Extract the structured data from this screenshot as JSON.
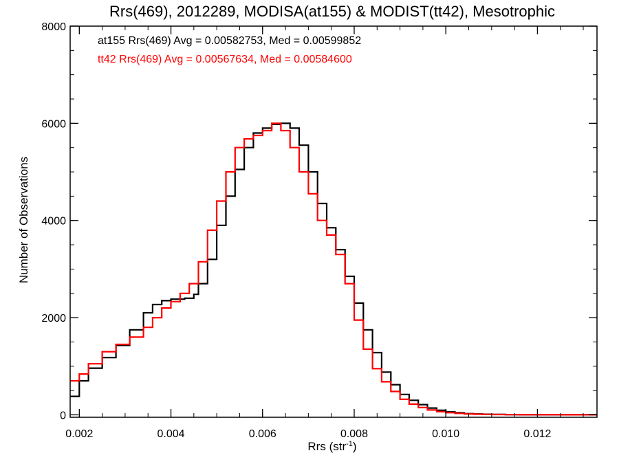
{
  "chart_data": {
    "type": "line",
    "style": "step histogram",
    "title": "Rrs(469), 2012289, MODISA(at155) & MODIST(tt42), Mesotrophic",
    "xlabel": "Rrs (str",
    "xlabel_sup": "-1",
    "xlabel_end": ")",
    "ylabel": "Number of Observations",
    "xlim": [
      0.0018,
      0.0133
    ],
    "ylim": [
      -50,
      8000
    ],
    "x_ticks": [
      0.002,
      0.004,
      0.006,
      0.008,
      0.01,
      0.012
    ],
    "x_tick_labels": [
      "0.002",
      "0.004",
      "0.006",
      "0.008",
      "0.010",
      "0.012"
    ],
    "y_ticks": [
      0,
      2000,
      4000,
      6000,
      8000
    ],
    "y_tick_labels": [
      "0",
      "2000",
      "4000",
      "6000",
      "8000"
    ],
    "grid": false,
    "legend_position": "top-left",
    "series": [
      {
        "name": "at155",
        "color": "#000000",
        "legend": "at155 Rrs(469) Avg = 0.00582753, Med = 0.00599852",
        "points": [
          [
            0.0018,
            380
          ],
          [
            0.002,
            700
          ],
          [
            0.0022,
            960
          ],
          [
            0.0025,
            1180
          ],
          [
            0.0028,
            1430
          ],
          [
            0.0031,
            1750
          ],
          [
            0.0034,
            2100
          ],
          [
            0.0036,
            2270
          ],
          [
            0.0038,
            2350
          ],
          [
            0.004,
            2380
          ],
          [
            0.0043,
            2400
          ],
          [
            0.0045,
            2480
          ],
          [
            0.0046,
            2700
          ],
          [
            0.0048,
            3200
          ],
          [
            0.005,
            3900
          ],
          [
            0.0052,
            4500
          ],
          [
            0.0054,
            5050
          ],
          [
            0.0056,
            5500
          ],
          [
            0.0058,
            5800
          ],
          [
            0.006,
            5900
          ],
          [
            0.0062,
            5980
          ],
          [
            0.0064,
            6000
          ],
          [
            0.0066,
            5900
          ],
          [
            0.0068,
            5550
          ],
          [
            0.007,
            5000
          ],
          [
            0.0072,
            4350
          ],
          [
            0.0074,
            3850
          ],
          [
            0.0076,
            3400
          ],
          [
            0.0078,
            2850
          ],
          [
            0.008,
            2300
          ],
          [
            0.0082,
            1750
          ],
          [
            0.0084,
            1280
          ],
          [
            0.0086,
            880
          ],
          [
            0.0088,
            620
          ],
          [
            0.009,
            420
          ],
          [
            0.0092,
            300
          ],
          [
            0.0094,
            210
          ],
          [
            0.0096,
            140
          ],
          [
            0.0098,
            95
          ],
          [
            0.01,
            60
          ],
          [
            0.0102,
            42
          ],
          [
            0.0104,
            25
          ],
          [
            0.0106,
            18
          ],
          [
            0.0108,
            12
          ],
          [
            0.011,
            8
          ],
          [
            0.0113,
            5
          ],
          [
            0.0116,
            3
          ],
          [
            0.012,
            2
          ],
          [
            0.0125,
            1
          ],
          [
            0.0133,
            0
          ]
        ]
      },
      {
        "name": "tt42",
        "color": "#ff0000",
        "legend": "tt42 Rrs(469) Avg = 0.00567634, Med = 0.00584600",
        "points": [
          [
            0.0018,
            700
          ],
          [
            0.002,
            840
          ],
          [
            0.0022,
            1050
          ],
          [
            0.0025,
            1300
          ],
          [
            0.0028,
            1450
          ],
          [
            0.0031,
            1600
          ],
          [
            0.0034,
            1800
          ],
          [
            0.0036,
            2000
          ],
          [
            0.0038,
            2200
          ],
          [
            0.004,
            2330
          ],
          [
            0.0042,
            2500
          ],
          [
            0.0044,
            2700
          ],
          [
            0.0046,
            3150
          ],
          [
            0.0048,
            3800
          ],
          [
            0.005,
            4400
          ],
          [
            0.0052,
            5000
          ],
          [
            0.0054,
            5500
          ],
          [
            0.0056,
            5680
          ],
          [
            0.0058,
            5750
          ],
          [
            0.006,
            5850
          ],
          [
            0.0062,
            6000
          ],
          [
            0.0064,
            5850
          ],
          [
            0.0066,
            5500
          ],
          [
            0.0068,
            5000
          ],
          [
            0.007,
            4550
          ],
          [
            0.0072,
            4000
          ],
          [
            0.0074,
            3700
          ],
          [
            0.0076,
            3300
          ],
          [
            0.0078,
            2700
          ],
          [
            0.008,
            1950
          ],
          [
            0.0082,
            1350
          ],
          [
            0.0084,
            950
          ],
          [
            0.0086,
            680
          ],
          [
            0.0088,
            480
          ],
          [
            0.009,
            320
          ],
          [
            0.0092,
            220
          ],
          [
            0.0094,
            150
          ],
          [
            0.0096,
            100
          ],
          [
            0.0098,
            65
          ],
          [
            0.01,
            45
          ],
          [
            0.0102,
            30
          ],
          [
            0.0104,
            20
          ],
          [
            0.0106,
            13
          ],
          [
            0.0108,
            9
          ],
          [
            0.011,
            6
          ],
          [
            0.0113,
            4
          ],
          [
            0.0116,
            3
          ],
          [
            0.012,
            2
          ],
          [
            0.0125,
            1
          ],
          [
            0.0133,
            0
          ]
        ]
      }
    ]
  }
}
